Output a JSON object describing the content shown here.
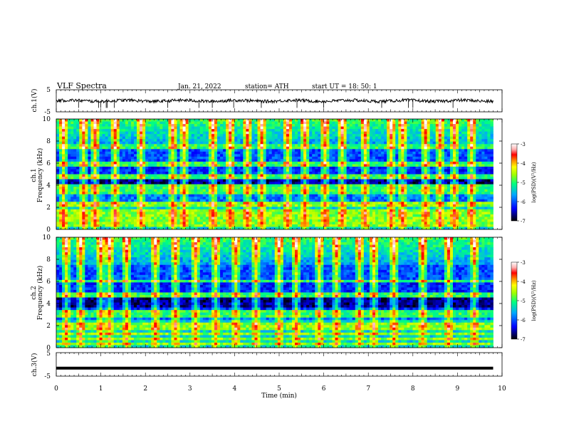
{
  "header": {
    "title": "VLF  Spectra",
    "date": "Jan. 21, 2022",
    "station": "station= ATH",
    "start": "start  UT  =   18: 50: 1"
  },
  "chart_data": [
    {
      "type": "line",
      "ylabel": "ch.1(V)",
      "ylim": [
        -5,
        5
      ],
      "y_ticks": [
        "5",
        "-5"
      ],
      "xlim": [
        0,
        10
      ],
      "signal_end_min": 9.8,
      "baseline_v": 0,
      "spikes_min": [
        0.5,
        0.95,
        1.0,
        1.12,
        1.14,
        1.3,
        2.5,
        3.2,
        3.5,
        3.98,
        4.6,
        5.4,
        6.0,
        7.3,
        7.9,
        8.0,
        8.9
      ]
    },
    {
      "type": "heatmap",
      "channel": "ch.1",
      "ylabel": "Frequency (kHz)",
      "ylim": [
        0,
        10
      ],
      "y_ticks": [
        "0",
        "2",
        "4",
        "6",
        "8",
        "10"
      ],
      "xlim": [
        0,
        10
      ],
      "colorbar": {
        "label": "log(PSD)(V²/Hz)",
        "range": [
          -7,
          -3
        ],
        "ticks": [
          "-3",
          "-4",
          "-5",
          "-6",
          "-7"
        ]
      },
      "signal_end_min": 9.8,
      "bands_khz": [
        0.3,
        0.5,
        0.7,
        0.9,
        1.2,
        1.6,
        2.1,
        2.3,
        3.4,
        3.9,
        4.8,
        5.9,
        7.5
      ],
      "low_power_band_khz": [
        3.6,
        5.0
      ],
      "sferics_min": [
        0.15,
        0.6,
        0.9,
        1.3,
        1.9,
        2.6,
        2.9,
        3.5,
        3.9,
        4.3,
        4.6,
        5.2,
        5.6,
        6.0,
        6.4,
        6.9,
        7.5,
        7.8,
        8.3,
        8.6,
        8.9,
        9.3
      ]
    },
    {
      "type": "heatmap",
      "channel": "ch.2",
      "ylabel": "Frequency (kHz)",
      "ylim": [
        0,
        10
      ],
      "y_ticks": [
        "0",
        "2",
        "4",
        "6",
        "8",
        "10"
      ],
      "xlim": [
        0,
        10
      ],
      "colorbar": {
        "label": "log(PSD)(V²/Hz)",
        "range": [
          -7,
          -3
        ],
        "ticks": [
          "-3",
          "-4",
          "-5",
          "-6",
          "-7"
        ]
      },
      "signal_end_min": 9.8,
      "bands_khz": [
        0.4,
        0.8,
        1.2,
        1.7,
        2.0,
        2.2,
        3.0,
        3.3,
        4.8,
        6.0
      ],
      "low_power_band_khz": [
        3.6,
        4.6
      ],
      "sferics_min": [
        0.25,
        0.55,
        1.0,
        1.2,
        1.6,
        2.2,
        2.7,
        3.1,
        3.6,
        4.0,
        4.5,
        5.0,
        5.4,
        5.9,
        6.3,
        6.8,
        7.1,
        7.6,
        8.2,
        8.8,
        9.4
      ]
    },
    {
      "type": "line",
      "ylabel": "ch.3(V)",
      "ylim": [
        -5,
        5
      ],
      "y_ticks": [
        "5",
        "-5"
      ],
      "xlim": [
        0,
        10
      ],
      "signal_end_min": 9.8,
      "baseline_v": -1.6,
      "xlabel": "Time  (min)",
      "x_ticks": [
        "0",
        "1",
        "2",
        "3",
        "4",
        "5",
        "6",
        "7",
        "8",
        "9",
        "10"
      ]
    }
  ]
}
